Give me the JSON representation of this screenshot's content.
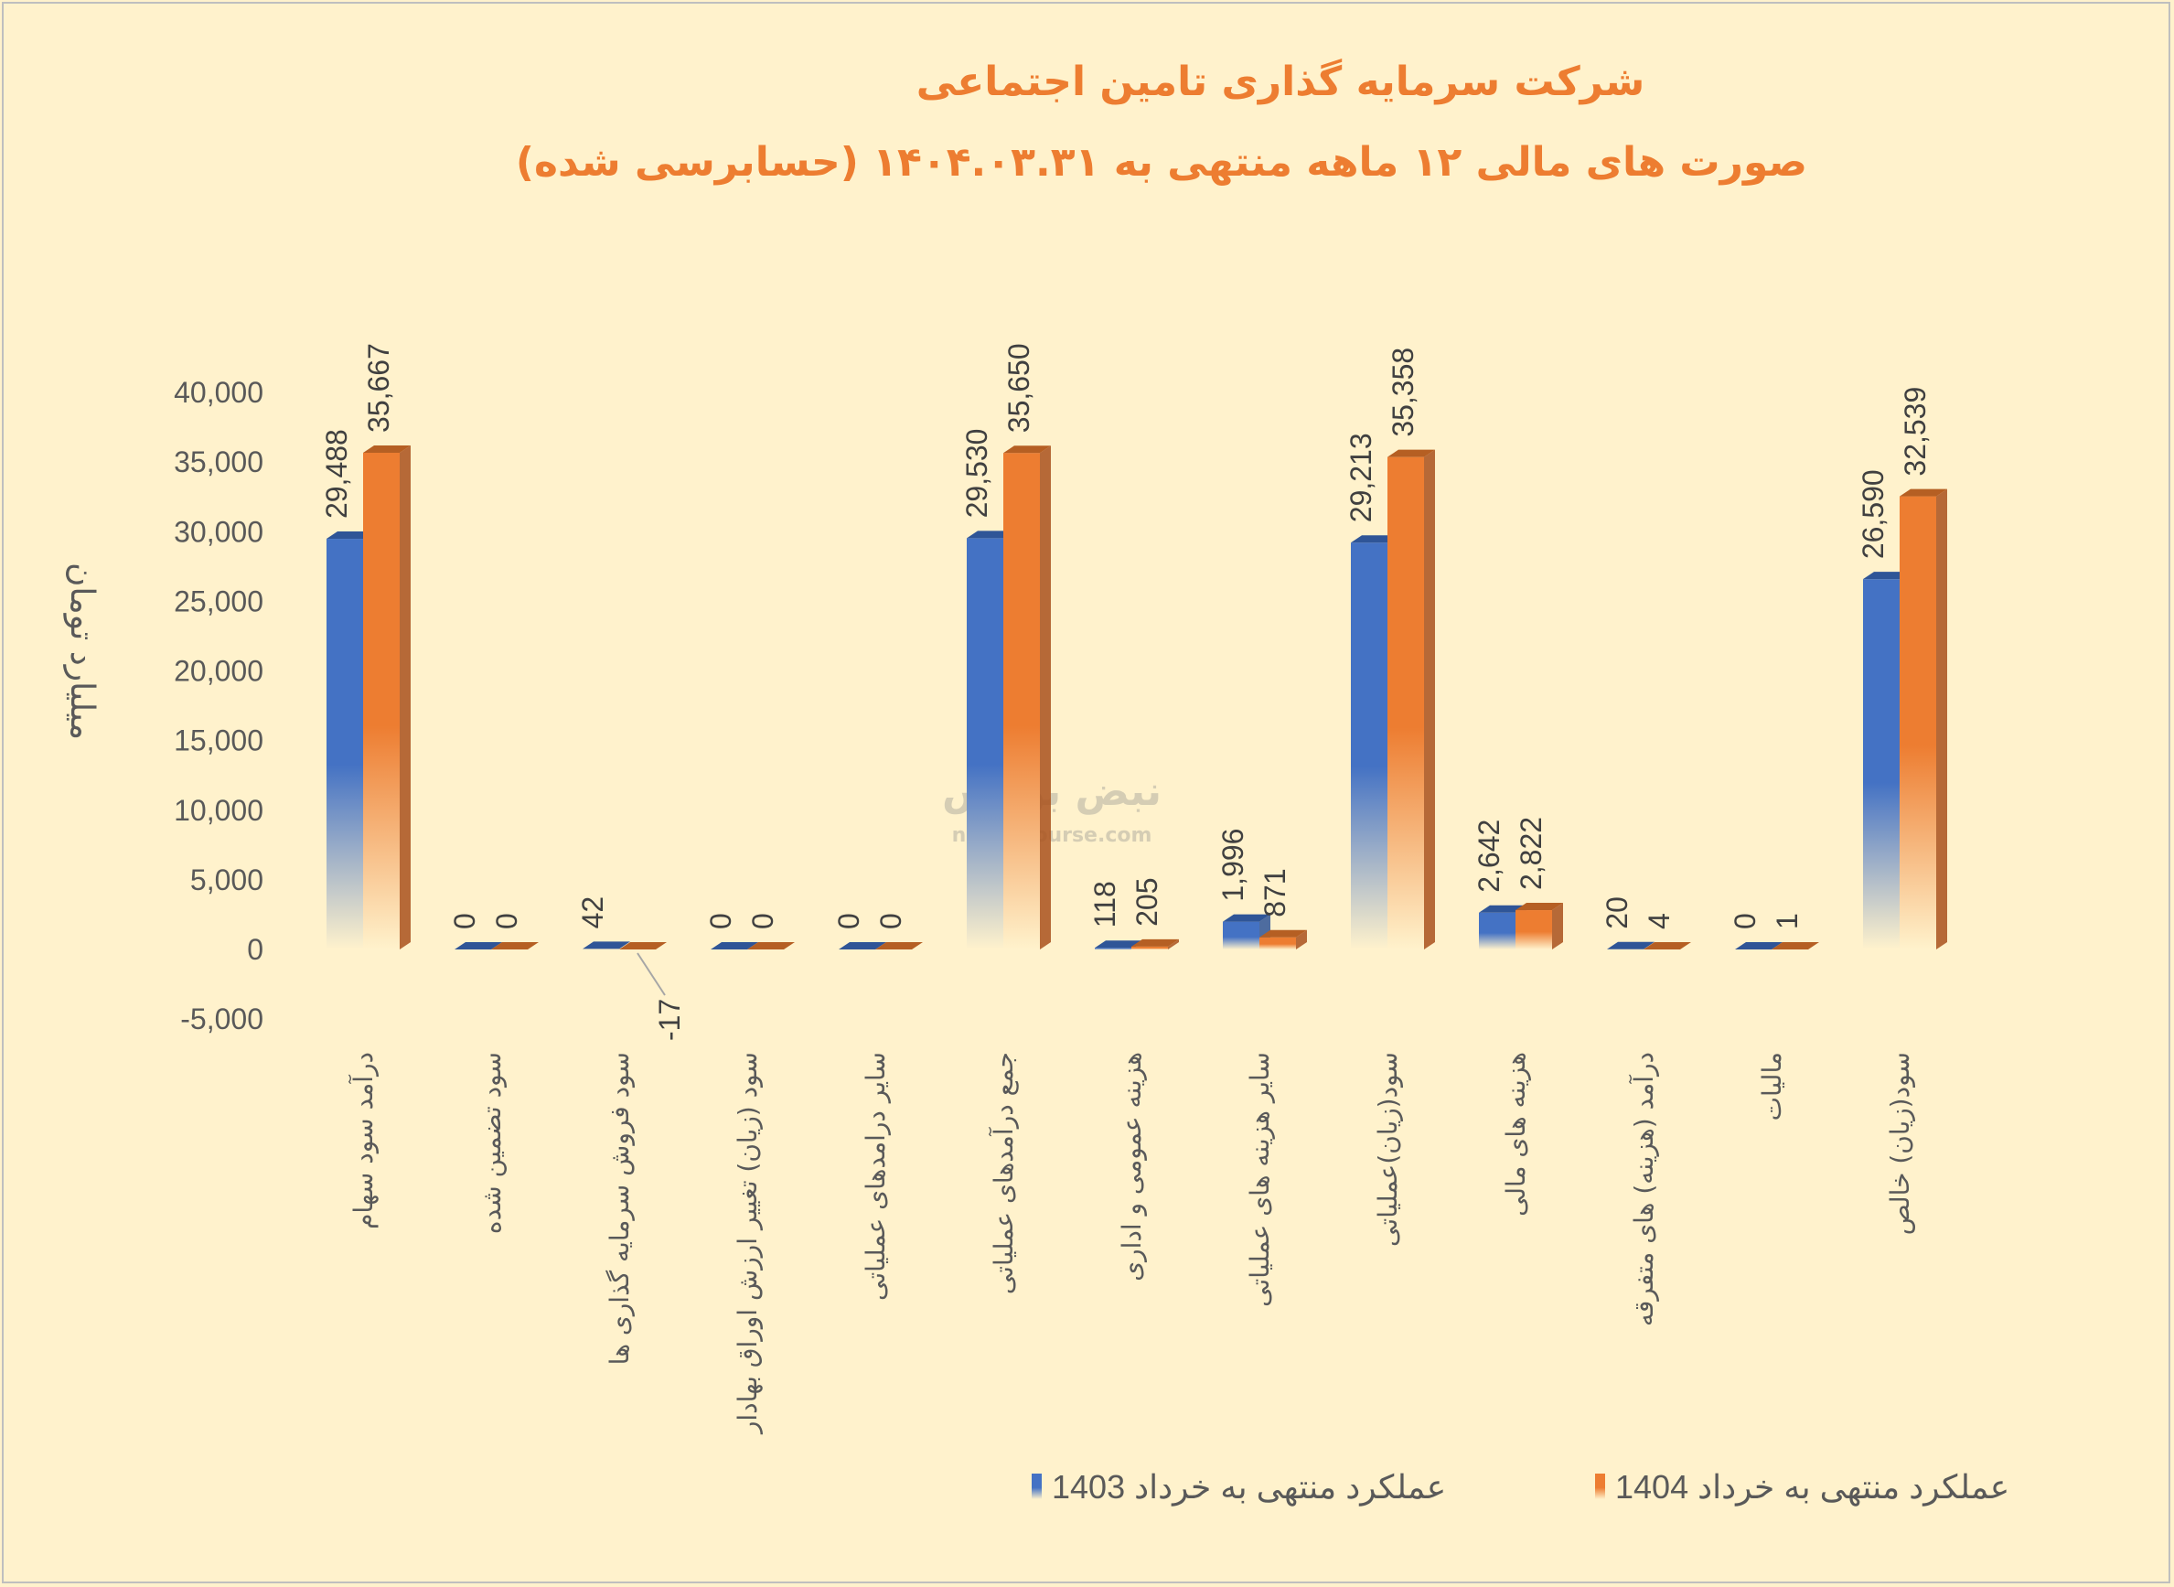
{
  "chart_data": {
    "type": "bar",
    "title": "شرکت سرمایه گذاری تامین اجتماعی",
    "subtitle": "صورت های مالی ۱۲ ماهه منتهی به ۱۴۰۴.۰۳.۳۱ (حسابرسی شده)",
    "ylabel": "میلیارد تومان",
    "xlabel": "",
    "ylim": [
      -5000,
      40000
    ],
    "yticks": [
      -5000,
      0,
      5000,
      10000,
      15000,
      20000,
      25000,
      30000,
      35000,
      40000
    ],
    "ytick_labels": [
      "-5,000",
      "0",
      "5,000",
      "10,000",
      "15,000",
      "20,000",
      "25,000",
      "30,000",
      "35,000",
      "40,000"
    ],
    "grid": false,
    "legend_position": "bottom-right",
    "categories": [
      "درآمد سود سهام",
      "سود تضمین شده",
      "سود فروش سرمایه گذاری ها",
      "سود (زیان) تغییر ارزش اوراق بهادار",
      "سایر درامدهای عملیاتی",
      "جمع درآمدهای عملیاتی",
      "هزینه عمومی و اداری",
      "سایر هزینه های عملیاتی",
      "سود(زیان)عملیاتی",
      "هزینه های مالی",
      "درآمد (هزینه) های متفرقه",
      "مالیات",
      "سود(زیان) خالص"
    ],
    "series": [
      {
        "name": "عملکرد منتهی به خرداد 1403",
        "color": "#4472C4",
        "values": [
          29488,
          0,
          42,
          0,
          0,
          29530,
          118,
          1996,
          29213,
          2642,
          20,
          0,
          26590
        ],
        "labels": [
          "29,488",
          "0",
          "42",
          "0",
          "0",
          "29,530",
          "118",
          "1,996",
          "29,213",
          "2,642",
          "20",
          "0",
          "26,590"
        ]
      },
      {
        "name": "عملکرد منتهی به خرداد 1404",
        "color": "#ED7D31",
        "values": [
          35667,
          0,
          -17,
          0,
          0,
          35650,
          205,
          871,
          35358,
          2822,
          4,
          1,
          32539
        ],
        "labels": [
          "35,667",
          "0",
          "-17",
          "0",
          "0",
          "35,650",
          "205",
          "871",
          "35,358",
          "2,822",
          "4",
          "1",
          "32,539"
        ]
      }
    ]
  },
  "watermark": {
    "brand": "نبض بورس",
    "site": "nabzebourse.com"
  }
}
